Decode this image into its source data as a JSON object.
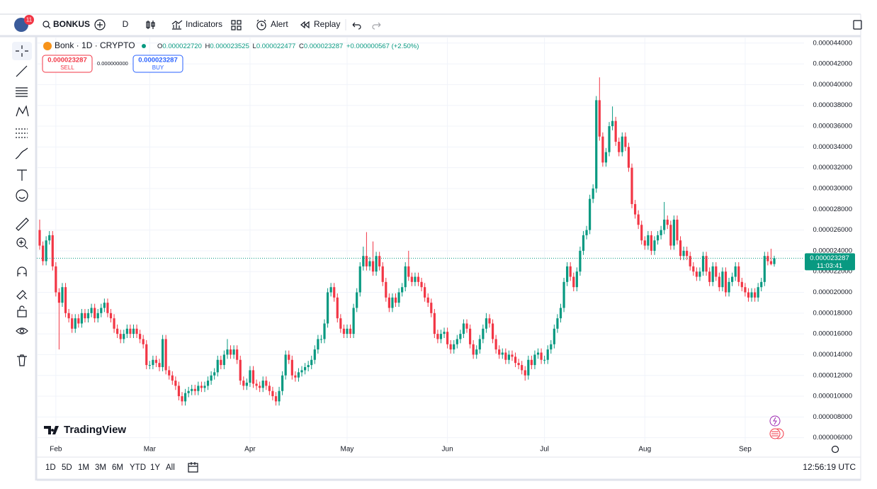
{
  "toolbar": {
    "notifications": "11",
    "symbol": "BONKUS",
    "interval": "D",
    "indicators": "Indicators",
    "alert": "Alert",
    "replay": "Replay"
  },
  "legend": {
    "title": "Bonk · 1D · CRYPTO",
    "ohlc": [
      {
        "label": "O",
        "value": "0.000022720"
      },
      {
        "label": "H",
        "value": "0.000023525"
      },
      {
        "label": "L",
        "value": "0.000022477"
      },
      {
        "label": "C",
        "value": "0.000023287"
      }
    ],
    "change": "+0.000000567 (+2.50%)"
  },
  "trade": {
    "sell_price": "0.000023287",
    "sell": "SELL",
    "spread": "0.000000000",
    "buy_price": "0.000023287",
    "buy": "BUY"
  },
  "price_tag": {
    "price": "0.000023287",
    "countdown": "11:03:41"
  },
  "logo": "TradingView",
  "ranges": [
    "1D",
    "5D",
    "1M",
    "3M",
    "6M",
    "YTD",
    "1Y",
    "All"
  ],
  "clock": "12:56:19 UTC",
  "chart_data": {
    "type": "candlestick",
    "up_color": "#089981",
    "down_color": "#f23645",
    "grid": true,
    "ylim": [
      5.5e-06,
      4.46e-05
    ],
    "yticks": [
      {
        "value": 6e-06,
        "label": "0.000006000"
      },
      {
        "value": 8e-06,
        "label": "0.000008000"
      },
      {
        "value": 1e-05,
        "label": "0.000010000"
      },
      {
        "value": 1.2e-05,
        "label": "0.000012000"
      },
      {
        "value": 1.4e-05,
        "label": "0.000014000"
      },
      {
        "value": 1.6e-05,
        "label": "0.000016000"
      },
      {
        "value": 1.8e-05,
        "label": "0.000018000"
      },
      {
        "value": 2e-05,
        "label": "0.000020000"
      },
      {
        "value": 2.2e-05,
        "label": "0.000022000"
      },
      {
        "value": 2.4e-05,
        "label": "0.000024000"
      },
      {
        "value": 2.6e-05,
        "label": "0.000026000"
      },
      {
        "value": 2.8e-05,
        "label": "0.000028000"
      },
      {
        "value": 3e-05,
        "label": "0.000030000"
      },
      {
        "value": 3.2e-05,
        "label": "0.000032000"
      },
      {
        "value": 3.4e-05,
        "label": "0.000034000"
      },
      {
        "value": 3.6e-05,
        "label": "0.000036000"
      },
      {
        "value": 3.8e-05,
        "label": "0.000038000"
      },
      {
        "value": 4e-05,
        "label": "0.000040000"
      },
      {
        "value": 4.2e-05,
        "label": "0.000042000"
      },
      {
        "value": 4.4e-05,
        "label": "0.000044000"
      }
    ],
    "categories": [
      null,
      null,
      null,
      null,
      null,
      "Feb",
      null,
      null,
      null,
      null,
      null,
      null,
      null,
      null,
      null,
      null,
      null,
      null,
      null,
      null,
      null,
      null,
      null,
      null,
      null,
      null,
      null,
      null,
      null,
      null,
      null,
      null,
      null,
      null,
      "Mar",
      null,
      null,
      null,
      null,
      null,
      null,
      null,
      null,
      null,
      null,
      null,
      null,
      null,
      null,
      null,
      null,
      null,
      null,
      null,
      null,
      null,
      null,
      null,
      null,
      null,
      null,
      null,
      null,
      null,
      null,
      "Apr",
      null,
      null,
      null,
      null,
      null,
      null,
      null,
      null,
      null,
      null,
      null,
      null,
      null,
      null,
      null,
      null,
      null,
      null,
      null,
      null,
      null,
      null,
      null,
      null,
      null,
      null,
      null,
      null,
      null,
      "May",
      null,
      null,
      null,
      null,
      null,
      null,
      null,
      null,
      null,
      null,
      null,
      null,
      null,
      null,
      null,
      null,
      null,
      null,
      null,
      null,
      null,
      null,
      null,
      null,
      null,
      null,
      null,
      null,
      null,
      null,
      "Jun",
      null,
      null,
      null,
      null,
      null,
      null,
      null,
      null,
      null,
      null,
      null,
      null,
      null,
      null,
      null,
      null,
      null,
      null,
      null,
      null,
      null,
      null,
      null,
      null,
      null,
      null,
      null,
      null,
      null,
      "Jul",
      null,
      null,
      null,
      null,
      null,
      null,
      null,
      null,
      null,
      null,
      null,
      null,
      null,
      null,
      null,
      null,
      null,
      null,
      null,
      null,
      null,
      null,
      null,
      null,
      null,
      null,
      null,
      null,
      null,
      null,
      "Aug",
      null,
      null,
      null,
      null,
      null,
      null,
      null,
      null,
      null,
      null,
      null,
      null,
      null,
      null,
      null,
      null,
      null,
      null,
      null,
      null,
      null,
      null,
      null,
      null,
      null,
      null,
      null,
      null,
      null,
      null,
      "Sep",
      null,
      null,
      null,
      null,
      null,
      null,
      null,
      null,
      null
    ],
    "open": [
      2.6e-05,
      2.45e-05,
      2.3e-05,
      2.5e-05,
      2.55e-05,
      2.25e-05,
      2e-05,
      1.9e-05,
      2.05e-05,
      1.8e-05,
      1.75e-05,
      1.65e-05,
      1.75e-05,
      1.7e-05,
      1.8e-05,
      1.75e-05,
      1.8e-05,
      1.85e-05,
      1.75e-05,
      1.8e-05,
      1.85e-05,
      1.9e-05,
      1.8e-05,
      1.75e-05,
      1.65e-05,
      1.6e-05,
      1.55e-05,
      1.6e-05,
      1.65e-05,
      1.6e-05,
      1.65e-05,
      1.6e-05,
      1.55e-05,
      1.5e-05,
      1.3e-05,
      1.3e-05,
      1.35e-05,
      1.32e-05,
      1.28e-05,
      1.55e-05,
      1.25e-05,
      1.2e-05,
      1.15e-05,
      1.1e-05,
      1e-05,
      9.5e-06,
      1.03e-05,
      1.05e-05,
      1.07e-05,
      1.05e-05,
      1.1e-05,
      1.08e-05,
      1.1e-05,
      1.15e-05,
      1.2e-05,
      1.23e-05,
      1.35e-05,
      1.3e-05,
      1.4e-05,
      1.45e-05,
      1.4e-05,
      1.45e-05,
      1.35e-05,
      1.15e-05,
      1.1e-05,
      1.13e-05,
      1.25e-05,
      1.12e-05,
      1.1e-05,
      1.08e-05,
      1.15e-05,
      1.1e-05,
      1.05e-05,
      1e-05,
      9.5e-06,
      1.05e-05,
      1.2e-05,
      1.4e-05,
      1.35e-05,
      1.2e-05,
      1.18e-05,
      1.23e-05,
      1.25e-05,
      1.28e-05,
      1.3e-05,
      1.35e-05,
      1.45e-05,
      1.55e-05,
      1.55e-05,
      1.7e-05,
      2e-05,
      2.05e-05,
      1.95e-05,
      1.75e-05,
      1.65e-05,
      1.6e-05,
      1.65e-05,
      1.6e-05,
      1.85e-05,
      2e-05,
      2.25e-05,
      2.35e-05,
      2.25e-05,
      2.3e-05,
      2.2e-05,
      2.35e-05,
      2.25e-05,
      2.1e-05,
      1.95e-05,
      1.85e-05,
      1.95e-05,
      1.9e-05,
      2e-05,
      2.05e-05,
      2.25e-05,
      2.15e-05,
      2.1e-05,
      2.15e-05,
      2.1e-05,
      2.05e-05,
      1.95e-05,
      1.9e-05,
      1.8e-05,
      1.6e-05,
      1.55e-05,
      1.6e-05,
      1.62e-05,
      1.5e-05,
      1.45e-05,
      1.5e-05,
      1.55e-05,
      1.6e-05,
      1.7e-05,
      1.65e-05,
      1.5e-05,
      1.4e-05,
      1.45e-05,
      1.55e-05,
      1.65e-05,
      1.75e-05,
      1.7e-05,
      1.55e-05,
      1.45e-05,
      1.4e-05,
      1.42e-05,
      1.35e-05,
      1.4e-05,
      1.38e-05,
      1.32e-05,
      1.3e-05,
      1.25e-05,
      1.2e-05,
      1.35e-05,
      1.3e-05,
      1.4e-05,
      1.42e-05,
      1.35e-05,
      1.35e-05,
      1.45e-05,
      1.5e-05,
      1.65e-05,
      1.75e-05,
      1.85e-05,
      2.1e-05,
      2.25e-05,
      2.15e-05,
      2.05e-05,
      2.2e-05,
      2.4e-05,
      2.55e-05,
      2.6e-05,
      2.9e-05,
      3e-05,
      3.85e-05,
      3.5e-05,
      3.25e-05,
      3.35e-05,
      3.6e-05,
      3.65e-05,
      3.45e-05,
      3.35e-05,
      3.5e-05,
      3.4e-05,
      3.2e-05,
      2.85e-05,
      2.75e-05,
      2.65e-05,
      2.5e-05,
      2.45e-05,
      2.55e-05,
      2.4e-05,
      2.5e-05,
      2.55e-05,
      2.6e-05,
      2.7e-05,
      2.65e-05,
      2.45e-05,
      2.7e-05,
      2.5e-05,
      2.35e-05,
      2.4e-05,
      2.35e-05,
      2.25e-05,
      2.2e-05,
      2.15e-05,
      2.2e-05,
      2.35e-05,
      2.2e-05,
      2.1e-05,
      2.25e-05,
      2.15e-05,
      2.05e-05,
      2.2e-05,
      2e-05,
      2.1e-05,
      2.15e-05,
      2.25e-05,
      2.1e-05,
      2.05e-05,
      2e-05,
      1.95e-05,
      2e-05,
      1.95e-05,
      2.05e-05,
      2.1e-05,
      2.35e-05,
      2.3e-05,
      2.272e-05
    ],
    "high": [
      2.7e-05,
      2.49e-05,
      2.54e-05,
      2.59e-05,
      2.59e-05,
      2.29e-05,
      2.04e-05,
      2.09e-05,
      2.09e-05,
      1.84e-05,
      1.79e-05,
      1.79e-05,
      1.79e-05,
      1.84e-05,
      1.84e-05,
      1.84e-05,
      1.89e-05,
      1.89e-05,
      1.84e-05,
      1.89e-05,
      1.94e-05,
      1.94e-05,
      1.84e-05,
      1.79e-05,
      1.69e-05,
      1.64e-05,
      1.64e-05,
      1.69e-05,
      1.69e-05,
      1.69e-05,
      1.69e-05,
      1.64e-05,
      1.59e-05,
      1.54e-05,
      1.34e-05,
      1.39e-05,
      1.39e-05,
      1.36e-05,
      1.59e-05,
      1.59e-05,
      1.29e-05,
      1.24e-05,
      1.19e-05,
      1.14e-05,
      1.04e-05,
      1.07e-05,
      1.09e-05,
      1.11e-05,
      1.11e-05,
      1.14e-05,
      1.14e-05,
      1.14e-05,
      1.19e-05,
      1.24e-05,
      1.27e-05,
      1.39e-05,
      1.39e-05,
      1.44e-05,
      1.55e-05,
      1.49e-05,
      1.49e-05,
      1.49e-05,
      1.39e-05,
      1.19e-05,
      1.17e-05,
      1.29e-05,
      1.29e-05,
      1.16e-05,
      1.14e-05,
      1.19e-05,
      1.19e-05,
      1.14e-05,
      1.09e-05,
      1.04e-05,
      1.09e-05,
      1.24e-05,
      1.44e-05,
      1.44e-05,
      1.39e-05,
      1.24e-05,
      1.27e-05,
      1.29e-05,
      1.32e-05,
      1.34e-05,
      1.39e-05,
      1.49e-05,
      1.59e-05,
      1.59e-05,
      1.74e-05,
      2.04e-05,
      2.09e-05,
      2.09e-05,
      1.99e-05,
      1.79e-05,
      1.69e-05,
      1.69e-05,
      1.69e-05,
      1.89e-05,
      2.04e-05,
      2.29e-05,
      2.44e-05,
      2.58e-05,
      2.34e-05,
      2.49e-05,
      2.39e-05,
      2.39e-05,
      2.29e-05,
      2.14e-05,
      1.99e-05,
      1.99e-05,
      1.99e-05,
      2.04e-05,
      2.09e-05,
      2.29e-05,
      2.4e-05,
      2.19e-05,
      2.19e-05,
      2.19e-05,
      2.14e-05,
      2.09e-05,
      1.99e-05,
      1.94e-05,
      1.84e-05,
      1.64e-05,
      1.64e-05,
      1.66e-05,
      1.66e-05,
      1.54e-05,
      1.54e-05,
      1.59e-05,
      1.64e-05,
      1.74e-05,
      1.74e-05,
      1.69e-05,
      1.54e-05,
      1.49e-05,
      1.59e-05,
      1.69e-05,
      1.8e-05,
      1.79e-05,
      1.74e-05,
      1.59e-05,
      1.49e-05,
      1.46e-05,
      1.46e-05,
      1.44e-05,
      1.44e-05,
      1.42e-05,
      1.36e-05,
      1.34e-05,
      1.29e-05,
      1.39e-05,
      1.39e-05,
      1.44e-05,
      1.46e-05,
      1.46e-05,
      1.39e-05,
      1.49e-05,
      1.54e-05,
      1.69e-05,
      1.79e-05,
      1.89e-05,
      2.14e-05,
      2.29e-05,
      2.29e-05,
      2.19e-05,
      2.24e-05,
      2.44e-05,
      2.59e-05,
      2.64e-05,
      2.94e-05,
      3.04e-05,
      3.89e-05,
      4.07e-05,
      3.54e-05,
      3.39e-05,
      3.64e-05,
      3.79e-05,
      3.69e-05,
      3.49e-05,
      3.54e-05,
      3.54e-05,
      3.44e-05,
      3.24e-05,
      2.89e-05,
      2.79e-05,
      2.69e-05,
      2.54e-05,
      2.59e-05,
      2.59e-05,
      2.54e-05,
      2.59e-05,
      2.64e-05,
      2.87e-05,
      2.74e-05,
      2.69e-05,
      2.74e-05,
      2.74e-05,
      2.54e-05,
      2.44e-05,
      2.44e-05,
      2.39e-05,
      2.29e-05,
      2.24e-05,
      2.24e-05,
      2.39e-05,
      2.39e-05,
      2.24e-05,
      2.29e-05,
      2.29e-05,
      2.19e-05,
      2.24e-05,
      2.24e-05,
      2.14e-05,
      2.19e-05,
      2.29e-05,
      2.29e-05,
      2.14e-05,
      2.09e-05,
      2.04e-05,
      2.04e-05,
      2.04e-05,
      2.09e-05,
      2.14e-05,
      2.39e-05,
      2.39e-05,
      2.42e-05,
      2.3525e-05
    ],
    "low": [
      2.41e-05,
      2.26e-05,
      2.26e-05,
      2.46e-05,
      2.21e-05,
      1.96e-05,
      1.45e-05,
      1.86e-05,
      1.76e-05,
      1.71e-05,
      1.61e-05,
      1.61e-05,
      1.66e-05,
      1.66e-05,
      1.71e-05,
      1.71e-05,
      1.76e-05,
      1.71e-05,
      1.71e-05,
      1.76e-05,
      1.81e-05,
      1.76e-05,
      1.71e-05,
      1.61e-05,
      1.56e-05,
      1.51e-05,
      1.51e-05,
      1.56e-05,
      1.56e-05,
      1.56e-05,
      1.56e-05,
      1.51e-05,
      1.46e-05,
      1.26e-05,
      1.26e-05,
      1.26e-05,
      1.28e-05,
      1.24e-05,
      1.24e-05,
      1.21e-05,
      1.16e-05,
      1.11e-05,
      1.06e-05,
      9.6e-06,
      9.1e-06,
      9.1e-06,
      9.9e-06,
      1.01e-05,
      1.01e-05,
      1.01e-05,
      1.04e-05,
      1.04e-05,
      1.06e-05,
      1.11e-05,
      1.16e-05,
      1.19e-05,
      1.26e-05,
      1.26e-05,
      1.36e-05,
      1.36e-05,
      1.36e-05,
      1.31e-05,
      1.11e-05,
      1.06e-05,
      1.06e-05,
      1.09e-05,
      1.08e-05,
      1.06e-05,
      1.04e-05,
      1.04e-05,
      1.06e-05,
      1.01e-05,
      9.6e-06,
      9.1e-06,
      9.1e-06,
      1.01e-05,
      1.16e-05,
      1.31e-05,
      1.16e-05,
      1.14e-05,
      1.14e-05,
      1.19e-05,
      1.21e-05,
      1.24e-05,
      1.26e-05,
      1.31e-05,
      1.41e-05,
      1.51e-05,
      1.51e-05,
      1.66e-05,
      1.96e-05,
      1.91e-05,
      1.71e-05,
      1.61e-05,
      1.56e-05,
      1.56e-05,
      1.56e-05,
      1.56e-05,
      1.81e-05,
      1.96e-05,
      2.21e-05,
      2.21e-05,
      2.21e-05,
      2.16e-05,
      2.16e-05,
      2.21e-05,
      2.06e-05,
      1.91e-05,
      1.81e-05,
      1.81e-05,
      1.86e-05,
      1.86e-05,
      1.96e-05,
      2.01e-05,
      2.11e-05,
      2.06e-05,
      2.06e-05,
      2.06e-05,
      2.01e-05,
      1.91e-05,
      1.86e-05,
      1.76e-05,
      1.56e-05,
      1.51e-05,
      1.51e-05,
      1.56e-05,
      1.46e-05,
      1.41e-05,
      1.41e-05,
      1.46e-05,
      1.51e-05,
      1.56e-05,
      1.61e-05,
      1.46e-05,
      1.36e-05,
      1.36e-05,
      1.41e-05,
      1.51e-05,
      1.61e-05,
      1.66e-05,
      1.51e-05,
      1.41e-05,
      1.36e-05,
      1.36e-05,
      1.31e-05,
      1.31e-05,
      1.34e-05,
      1.28e-05,
      1.26e-05,
      1.21e-05,
      1.15e-05,
      1.16e-05,
      1.26e-05,
      1.26e-05,
      1.36e-05,
      1.31e-05,
      1.31e-05,
      1.31e-05,
      1.41e-05,
      1.46e-05,
      1.61e-05,
      1.71e-05,
      1.81e-05,
      2.06e-05,
      2.11e-05,
      2.01e-05,
      2.01e-05,
      2.16e-05,
      2.36e-05,
      2.51e-05,
      2.56e-05,
      2.86e-05,
      2.96e-05,
      3.46e-05,
      3.21e-05,
      3.21e-05,
      3.31e-05,
      3.56e-05,
      3.41e-05,
      3.31e-05,
      3.31e-05,
      3.36e-05,
      3.16e-05,
      2.81e-05,
      2.71e-05,
      2.61e-05,
      2.46e-05,
      2.41e-05,
      2.41e-05,
      2.36e-05,
      2.36e-05,
      2.46e-05,
      2.51e-05,
      2.56e-05,
      2.61e-05,
      2.41e-05,
      2.41e-05,
      2.46e-05,
      2.31e-05,
      2.31e-05,
      2.31e-05,
      2.21e-05,
      2.16e-05,
      2.11e-05,
      2.11e-05,
      2.16e-05,
      2.16e-05,
      2.06e-05,
      2.06e-05,
      2.11e-05,
      2.01e-05,
      2.01e-05,
      1.96e-05,
      1.96e-05,
      2.06e-05,
      2.11e-05,
      2.06e-05,
      2.01e-05,
      1.96e-05,
      1.91e-05,
      1.91e-05,
      1.91e-05,
      1.91e-05,
      2.01e-05,
      2.06e-05,
      2.26e-05,
      2.26e-05,
      2.2477e-05
    ],
    "close": [
      2.45e-05,
      2.3e-05,
      2.5e-05,
      2.55e-05,
      2.25e-05,
      2e-05,
      1.9e-05,
      2.05e-05,
      1.8e-05,
      1.75e-05,
      1.65e-05,
      1.75e-05,
      1.7e-05,
      1.8e-05,
      1.75e-05,
      1.8e-05,
      1.85e-05,
      1.75e-05,
      1.8e-05,
      1.85e-05,
      1.9e-05,
      1.8e-05,
      1.75e-05,
      1.65e-05,
      1.6e-05,
      1.55e-05,
      1.6e-05,
      1.65e-05,
      1.6e-05,
      1.65e-05,
      1.6e-05,
      1.55e-05,
      1.5e-05,
      1.3e-05,
      1.3e-05,
      1.35e-05,
      1.32e-05,
      1.28e-05,
      1.55e-05,
      1.25e-05,
      1.2e-05,
      1.15e-05,
      1.1e-05,
      1e-05,
      9.5e-06,
      1.03e-05,
      1.05e-05,
      1.07e-05,
      1.05e-05,
      1.1e-05,
      1.08e-05,
      1.1e-05,
      1.15e-05,
      1.2e-05,
      1.23e-05,
      1.35e-05,
      1.3e-05,
      1.4e-05,
      1.45e-05,
      1.4e-05,
      1.45e-05,
      1.35e-05,
      1.15e-05,
      1.1e-05,
      1.13e-05,
      1.25e-05,
      1.12e-05,
      1.1e-05,
      1.08e-05,
      1.15e-05,
      1.1e-05,
      1.05e-05,
      1e-05,
      9.5e-06,
      1.05e-05,
      1.2e-05,
      1.4e-05,
      1.35e-05,
      1.2e-05,
      1.18e-05,
      1.23e-05,
      1.25e-05,
      1.28e-05,
      1.3e-05,
      1.35e-05,
      1.45e-05,
      1.55e-05,
      1.55e-05,
      1.7e-05,
      2e-05,
      2.05e-05,
      1.95e-05,
      1.75e-05,
      1.65e-05,
      1.6e-05,
      1.65e-05,
      1.6e-05,
      1.85e-05,
      2e-05,
      2.25e-05,
      2.35e-05,
      2.25e-05,
      2.3e-05,
      2.2e-05,
      2.35e-05,
      2.25e-05,
      2.1e-05,
      1.95e-05,
      1.85e-05,
      1.95e-05,
      1.9e-05,
      2e-05,
      2.05e-05,
      2.25e-05,
      2.15e-05,
      2.1e-05,
      2.15e-05,
      2.1e-05,
      2.05e-05,
      1.95e-05,
      1.9e-05,
      1.8e-05,
      1.6e-05,
      1.55e-05,
      1.6e-05,
      1.62e-05,
      1.5e-05,
      1.45e-05,
      1.5e-05,
      1.55e-05,
      1.6e-05,
      1.7e-05,
      1.65e-05,
      1.5e-05,
      1.4e-05,
      1.45e-05,
      1.55e-05,
      1.65e-05,
      1.75e-05,
      1.7e-05,
      1.55e-05,
      1.45e-05,
      1.4e-05,
      1.42e-05,
      1.35e-05,
      1.4e-05,
      1.38e-05,
      1.32e-05,
      1.3e-05,
      1.25e-05,
      1.2e-05,
      1.35e-05,
      1.3e-05,
      1.4e-05,
      1.42e-05,
      1.35e-05,
      1.35e-05,
      1.45e-05,
      1.5e-05,
      1.65e-05,
      1.75e-05,
      1.85e-05,
      2.1e-05,
      2.25e-05,
      2.15e-05,
      2.05e-05,
      2.2e-05,
      2.4e-05,
      2.55e-05,
      2.6e-05,
      2.9e-05,
      3e-05,
      3.85e-05,
      3.5e-05,
      3.25e-05,
      3.35e-05,
      3.6e-05,
      3.65e-05,
      3.45e-05,
      3.35e-05,
      3.5e-05,
      3.4e-05,
      3.2e-05,
      2.85e-05,
      2.75e-05,
      2.65e-05,
      2.5e-05,
      2.45e-05,
      2.55e-05,
      2.4e-05,
      2.5e-05,
      2.55e-05,
      2.6e-05,
      2.7e-05,
      2.65e-05,
      2.45e-05,
      2.7e-05,
      2.5e-05,
      2.35e-05,
      2.4e-05,
      2.35e-05,
      2.25e-05,
      2.2e-05,
      2.15e-05,
      2.2e-05,
      2.35e-05,
      2.2e-05,
      2.1e-05,
      2.25e-05,
      2.15e-05,
      2.05e-05,
      2.2e-05,
      2e-05,
      2.1e-05,
      2.15e-05,
      2.25e-05,
      2.1e-05,
      2.05e-05,
      2e-05,
      1.95e-05,
      2e-05,
      1.95e-05,
      2.05e-05,
      2.1e-05,
      2.35e-05,
      2.3e-05,
      2.272e-05,
      2.3287e-05
    ]
  }
}
